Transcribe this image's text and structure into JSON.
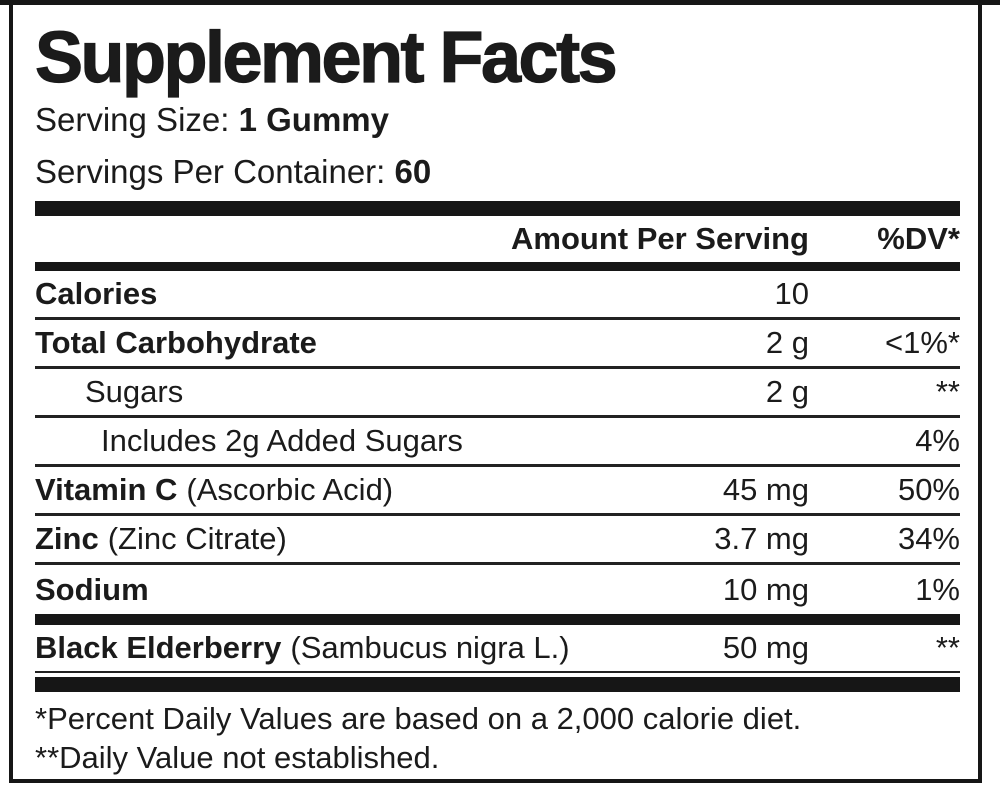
{
  "title": "Supplement Facts",
  "serving": {
    "size_label": "Serving Size:",
    "size_value": "1 Gummy",
    "container_label": "Servings Per Container:",
    "container_value": "60"
  },
  "columns": {
    "amount": "Amount Per Serving",
    "dv": "%DV*"
  },
  "rows": [
    {
      "name": "Calories",
      "detail": "",
      "amount": "10",
      "dv": ""
    },
    {
      "name": "Total Carbohydrate",
      "detail": "",
      "amount": "2 g",
      "dv": "<1%*"
    },
    {
      "name": "Sugars",
      "detail": "",
      "amount": "2 g",
      "dv": "**"
    },
    {
      "name": "Includes 2g Added Sugars",
      "detail": "",
      "amount": "",
      "dv": "4%"
    },
    {
      "name": "Vitamin C",
      "detail": "(Ascorbic Acid)",
      "amount": "45 mg",
      "dv": "50%"
    },
    {
      "name": "Zinc",
      "detail": "(Zinc Citrate)",
      "amount": "3.7 mg",
      "dv": "34%"
    },
    {
      "name": "Sodium",
      "detail": "",
      "amount": "10 mg",
      "dv": "1%"
    },
    {
      "name": "Black Elderberry",
      "detail": "(Sambucus nigra L.)",
      "amount": "50 mg",
      "dv": "**"
    }
  ],
  "footnotes": [
    "*Percent Daily Values are based on a 2,000 calorie diet.",
    "**Daily Value not established."
  ],
  "colors": {
    "ink": "#1b1b1b",
    "background": "#ffffff"
  }
}
